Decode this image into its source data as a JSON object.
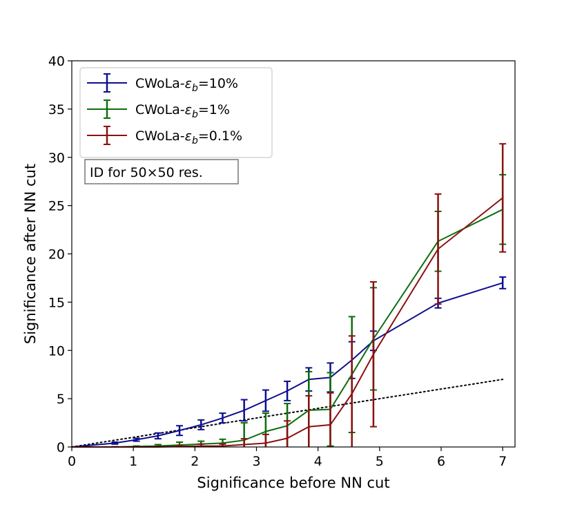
{
  "chart_data": {
    "type": "line",
    "title": "",
    "xlabel": "Significance before NN cut",
    "ylabel": "Significance after NN cut",
    "xlim": [
      0,
      7.2
    ],
    "ylim": [
      0,
      40
    ],
    "xticks": [
      0,
      1,
      2,
      3,
      4,
      5,
      6,
      7
    ],
    "yticks": [
      0,
      5,
      10,
      15,
      20,
      25,
      30,
      35,
      40
    ],
    "grid": false,
    "legend_position": "top-left",
    "annotation": "ID for 50×50 res.",
    "reference_line": {
      "style": "dotted",
      "color": "#000000",
      "x": [
        0,
        7
      ],
      "y": [
        0,
        7
      ]
    },
    "series": [
      {
        "name": "CWoLa-",
        "name_symbol": "ε",
        "name_subscript": "b",
        "name_suffix": "=10%",
        "color": "#0d0d8f",
        "x": [
          0,
          0.7,
          1.05,
          1.4,
          1.75,
          2.1,
          2.45,
          2.8,
          3.15,
          3.5,
          3.85,
          4.2,
          4.55,
          4.9,
          5.95,
          7.0
        ],
        "y": [
          0,
          0.4,
          0.75,
          1.15,
          1.7,
          2.3,
          3.0,
          3.8,
          4.8,
          5.8,
          7.0,
          7.2,
          9.0,
          11.0,
          14.9,
          17.0
        ],
        "err": [
          0,
          0.1,
          0.15,
          0.3,
          0.5,
          0.5,
          0.5,
          1.1,
          1.1,
          1.0,
          1.2,
          1.5,
          1.9,
          1.0,
          0.5,
          0.6
        ]
      },
      {
        "name": "CWoLa-",
        "name_symbol": "ε",
        "name_subscript": "b",
        "name_suffix": "=1%",
        "color": "#0b6e0b",
        "x": [
          0,
          0.7,
          1.05,
          1.4,
          1.75,
          2.1,
          2.45,
          2.8,
          3.15,
          3.5,
          3.85,
          4.2,
          4.55,
          4.9,
          5.95,
          7.0
        ],
        "y": [
          0,
          0.0,
          0.05,
          0.1,
          0.2,
          0.3,
          0.4,
          0.7,
          1.6,
          2.2,
          3.8,
          3.9,
          7.5,
          11.2,
          21.3,
          24.6
        ],
        "err": [
          0,
          0.02,
          0.05,
          0.15,
          0.3,
          0.3,
          0.4,
          1.8,
          1.9,
          2.3,
          4.0,
          3.8,
          6.0,
          5.3,
          3.1,
          3.6
        ]
      },
      {
        "name": "CWoLa-",
        "name_symbol": "ε",
        "name_subscript": "b",
        "name_suffix": "=0.1%",
        "color": "#8b1010",
        "x": [
          0,
          0.7,
          1.05,
          1.4,
          1.75,
          2.1,
          2.45,
          2.8,
          3.15,
          3.5,
          3.85,
          4.2,
          4.55,
          4.9,
          5.95,
          7.0
        ],
        "y": [
          0,
          0.0,
          0.0,
          0.0,
          0.05,
          0.1,
          0.1,
          0.25,
          0.4,
          0.9,
          2.1,
          2.3,
          5.5,
          9.6,
          20.5,
          25.8
        ],
        "err": [
          0,
          0.01,
          0.02,
          0.05,
          0.1,
          0.2,
          0.2,
          0.6,
          0.9,
          1.8,
          3.2,
          3.3,
          6.0,
          7.5,
          5.7,
          5.6
        ]
      }
    ]
  }
}
